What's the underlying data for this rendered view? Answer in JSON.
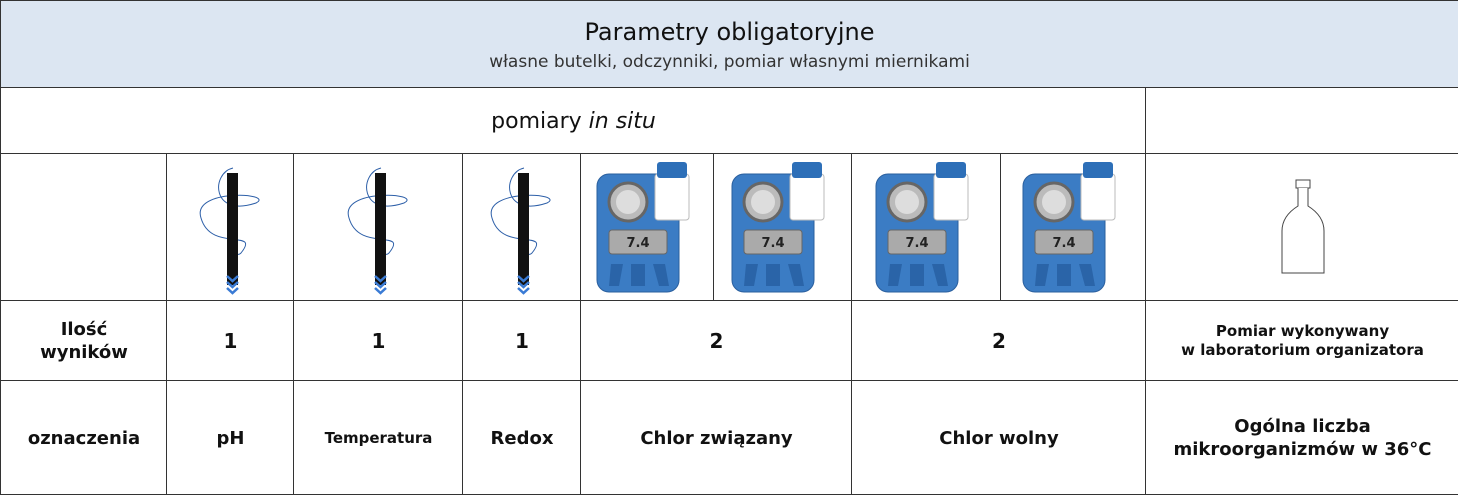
{
  "header": {
    "title": "Parametry obligatoryjne",
    "subtitle": "własne butelki, odczynniki,  pomiar własnymi miernikami"
  },
  "section": {
    "label": "pomiary",
    "label_italic": "in situ"
  },
  "meter_display": "7.4",
  "table": {
    "rows": [
      [
        [
          "Ilość",
          "wyników"
        ],
        "1",
        "1",
        "1",
        "2",
        "2",
        [
          "Pomiar wykonywany",
          "w laboratorium organizatora"
        ]
      ],
      [
        "oznaczenia",
        "pH",
        "Temperatura",
        "Redox",
        "Chlor związany",
        "Chlor wolny",
        [
          "Ogólna liczba",
          "mikroorganizmów w 36°C"
        ]
      ]
    ]
  }
}
